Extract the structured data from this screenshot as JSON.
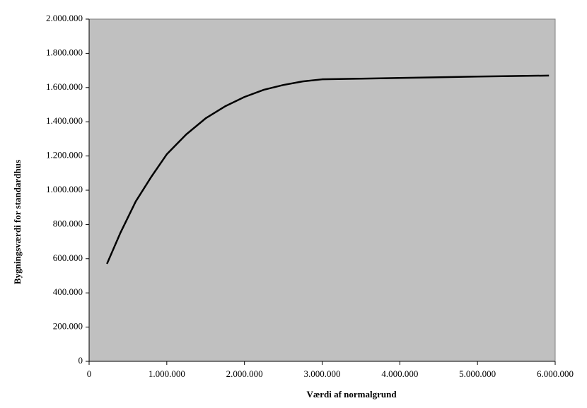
{
  "chart_data": {
    "type": "line",
    "x_label": "Værdi  af normalgrund",
    "y_label": "Bygningsværdi  for standardhus",
    "plot_background": "#c0c0c0",
    "series": [
      {
        "color": "#000000",
        "x": [
          230000,
          400000,
          600000,
          800000,
          1000000,
          1250000,
          1500000,
          1750000,
          2000000,
          2250000,
          2500000,
          2750000,
          3000000,
          3500000,
          4000000,
          5000000,
          5920000
        ],
        "values": [
          570000,
          748000,
          934000,
          1078000,
          1210000,
          1326000,
          1420000,
          1490000,
          1545000,
          1587000,
          1615000,
          1636000,
          1648000,
          1652000,
          1656000,
          1664000,
          1670000
        ]
      }
    ],
    "xlim": [
      0,
      6000000
    ],
    "xticks": [
      0,
      {
        "value": 1000000,
        "label": "1.000.000"
      },
      {
        "value": 2000000,
        "label": "2.000.000"
      },
      {
        "value": 3000000,
        "label": "3.000.000"
      },
      {
        "value": 4000000,
        "label": "4.000.000"
      },
      {
        "value": 5000000,
        "label": "5.000.000"
      },
      {
        "value": 6000000,
        "label": "6.000.000"
      }
    ],
    "ylim": [
      0,
      2000000
    ],
    "yticks": [
      0,
      {
        "value": 200000,
        "label": "200.000"
      },
      {
        "value": 400000,
        "label": "400.000"
      },
      {
        "value": 600000,
        "label": "600.000"
      },
      {
        "value": 800000,
        "label": "800.000"
      },
      {
        "value": 1000000,
        "label": "1.000.000"
      },
      {
        "value": 1200000,
        "label": "1.200.000"
      },
      {
        "value": 1400000,
        "label": "1.400.000"
      },
      {
        "value": 1600000,
        "label": "1.600.000"
      },
      {
        "value": 1800000,
        "label": "1.800.000"
      },
      {
        "value": 2000000,
        "label": "2.000.000"
      }
    ],
    "grid": false
  }
}
